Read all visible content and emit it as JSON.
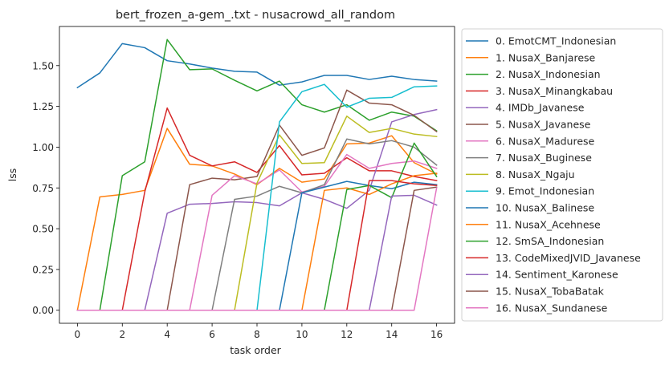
{
  "chart_data": {
    "type": "line",
    "title": "bert_frozen_a-gem_.txt - nusacrowd_all_random",
    "xlabel": "task order",
    "ylabel": "lss",
    "xlim": [
      -0.8,
      16.8
    ],
    "ylim": [
      -0.08,
      1.74
    ],
    "xticks": [
      0,
      2,
      4,
      6,
      8,
      10,
      12,
      14,
      16
    ],
    "yticks": [
      0.0,
      0.25,
      0.5,
      0.75,
      1.0,
      1.25,
      1.5
    ],
    "ytick_labels": [
      "0.00",
      "0.25",
      "0.50",
      "0.75",
      "1.00",
      "1.25",
      "1.50"
    ],
    "grid": false,
    "legend_position": "outside-right",
    "x": [
      0,
      1,
      2,
      3,
      4,
      5,
      6,
      7,
      8,
      9,
      10,
      11,
      12,
      13,
      14,
      15,
      16
    ],
    "series": [
      {
        "name": "0. EmotCMT_Indonesian",
        "color": "#1f77b4",
        "values": [
          1.365,
          1.455,
          1.635,
          1.61,
          1.53,
          1.51,
          1.485,
          1.465,
          1.46,
          1.38,
          1.4,
          1.44,
          1.44,
          1.415,
          1.435,
          1.415,
          1.405
        ]
      },
      {
        "name": "1. NusaX_Banjarese",
        "color": "#ff7f0e",
        "values": [
          0.0,
          0.695,
          0.71,
          0.735,
          1.115,
          0.895,
          0.885,
          0.835,
          0.77,
          0.87,
          0.785,
          0.805,
          1.02,
          1.025,
          1.07,
          0.905,
          0.835
        ]
      },
      {
        "name": "2. NusaX_Indonesian",
        "color": "#2ca02c",
        "values": [
          0.0,
          0.0,
          0.825,
          0.91,
          1.66,
          1.475,
          1.48,
          1.41,
          1.345,
          1.405,
          1.26,
          1.215,
          1.26,
          1.165,
          1.215,
          1.19,
          1.1
        ]
      },
      {
        "name": "3. NusaX_Minangkabau",
        "color": "#d62728",
        "values": [
          0.0,
          0.0,
          0.0,
          0.725,
          1.24,
          0.95,
          0.885,
          0.91,
          0.845,
          1.01,
          0.83,
          0.84,
          0.935,
          0.855,
          0.855,
          0.82,
          0.795
        ]
      },
      {
        "name": "4. IMDb_Javanese",
        "color": "#9467bd",
        "values": [
          0.0,
          0.0,
          0.0,
          0.0,
          0.595,
          0.65,
          0.655,
          0.665,
          0.66,
          0.64,
          0.72,
          0.68,
          0.625,
          0.735,
          1.155,
          1.2,
          1.23
        ]
      },
      {
        "name": "5. NusaX_Javanese",
        "color": "#8c564b",
        "values": [
          0.0,
          0.0,
          0.0,
          0.0,
          0.0,
          0.77,
          0.81,
          0.8,
          0.82,
          1.135,
          0.95,
          0.995,
          1.35,
          1.27,
          1.26,
          1.195,
          1.095
        ]
      },
      {
        "name": "6. NusaX_Madurese",
        "color": "#e377c2",
        "values": [
          0.0,
          0.0,
          0.0,
          0.0,
          0.0,
          0.0,
          0.705,
          0.825,
          0.775,
          0.86,
          0.725,
          0.76,
          0.955,
          0.87,
          0.9,
          0.915,
          0.87
        ]
      },
      {
        "name": "7. NusaX_Buginese",
        "color": "#7f7f7f",
        "values": [
          0.0,
          0.0,
          0.0,
          0.0,
          0.0,
          0.0,
          0.0,
          0.68,
          0.7,
          0.76,
          0.72,
          0.77,
          1.05,
          1.02,
          1.04,
          1.0,
          0.89
        ]
      },
      {
        "name": "8. NusaX_Ngaju",
        "color": "#bcbd22",
        "values": [
          0.0,
          0.0,
          0.0,
          0.0,
          0.0,
          0.0,
          0.0,
          0.0,
          0.78,
          1.075,
          0.9,
          0.905,
          1.19,
          1.09,
          1.115,
          1.08,
          1.065
        ]
      },
      {
        "name": "9. Emot_Indonesian",
        "color": "#17becf",
        "values": [
          0.0,
          0.0,
          0.0,
          0.0,
          0.0,
          0.0,
          0.0,
          0.0,
          0.0,
          1.155,
          1.34,
          1.385,
          1.245,
          1.3,
          1.305,
          1.37,
          1.375
        ]
      },
      {
        "name": "10. NusaX_Balinese",
        "color": "#1f77b4",
        "values": [
          0.0,
          0.0,
          0.0,
          0.0,
          0.0,
          0.0,
          0.0,
          0.0,
          0.0,
          0.0,
          0.72,
          0.755,
          0.79,
          0.765,
          0.745,
          0.785,
          0.77
        ]
      },
      {
        "name": "11. NusaX_Acehnese",
        "color": "#ff7f0e",
        "values": [
          0.0,
          0.0,
          0.0,
          0.0,
          0.0,
          0.0,
          0.0,
          0.0,
          0.0,
          0.0,
          0.0,
          0.735,
          0.75,
          0.71,
          0.775,
          0.825,
          0.84
        ]
      },
      {
        "name": "12. SmSA_Indonesian",
        "color": "#2ca02c",
        "values": [
          0.0,
          0.0,
          0.0,
          0.0,
          0.0,
          0.0,
          0.0,
          0.0,
          0.0,
          0.0,
          0.0,
          0.0,
          0.74,
          0.765,
          0.69,
          1.025,
          0.82
        ]
      },
      {
        "name": "13. CodeMixedJVID_Javanese",
        "color": "#d62728",
        "values": [
          0.0,
          0.0,
          0.0,
          0.0,
          0.0,
          0.0,
          0.0,
          0.0,
          0.0,
          0.0,
          0.0,
          0.0,
          0.0,
          0.795,
          0.795,
          0.775,
          0.765
        ]
      },
      {
        "name": "14. Sentiment_Karonese",
        "color": "#9467bd",
        "values": [
          0.0,
          0.0,
          0.0,
          0.0,
          0.0,
          0.0,
          0.0,
          0.0,
          0.0,
          0.0,
          0.0,
          0.0,
          0.0,
          0.0,
          0.7,
          0.705,
          0.645
        ]
      },
      {
        "name": "15. NusaX_TobaBatak",
        "color": "#8c564b",
        "values": [
          0.0,
          0.0,
          0.0,
          0.0,
          0.0,
          0.0,
          0.0,
          0.0,
          0.0,
          0.0,
          0.0,
          0.0,
          0.0,
          0.0,
          0.0,
          0.735,
          0.755
        ]
      },
      {
        "name": "16. NusaX_Sundanese",
        "color": "#e377c2",
        "values": [
          0.0,
          0.0,
          0.0,
          0.0,
          0.0,
          0.0,
          0.0,
          0.0,
          0.0,
          0.0,
          0.0,
          0.0,
          0.0,
          0.0,
          0.0,
          0.0,
          0.75
        ]
      }
    ]
  }
}
